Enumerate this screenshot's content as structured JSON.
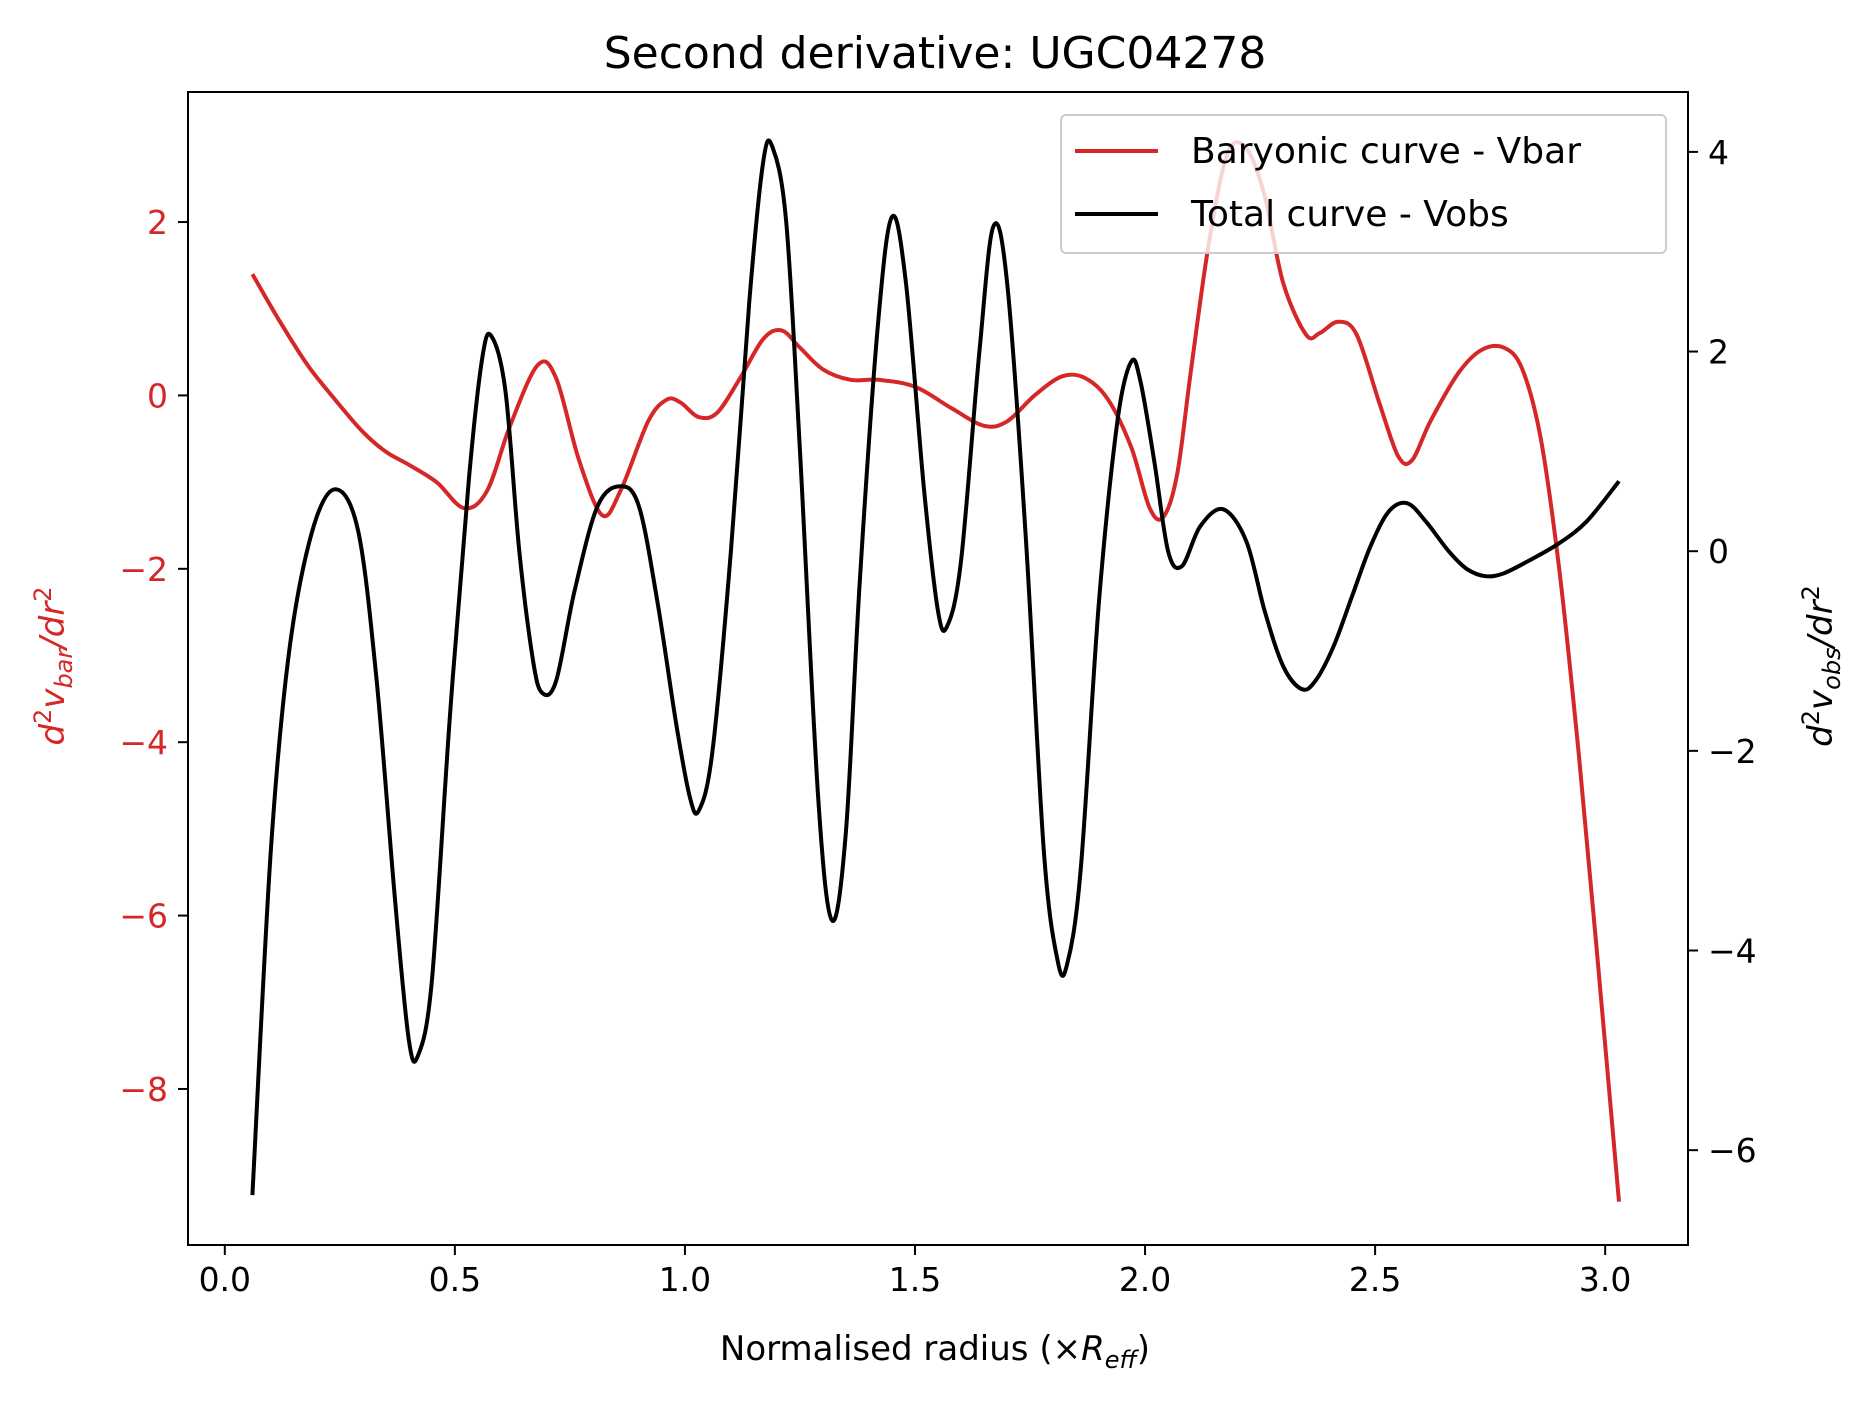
{
  "chart_data": {
    "type": "line",
    "title": "Second derivative: UGC04278",
    "xlabel": {
      "prefix": "Normalised radius (×",
      "sym": "R",
      "sub": "eff",
      "suffix": ")"
    },
    "ylabel_left": {
      "d": "d",
      "sup1": "2",
      "v": "v",
      "sub": "bar",
      "mid": "/dr",
      "sup2": "2"
    },
    "ylabel_right": {
      "d": "d",
      "sup1": "2",
      "v": "v",
      "sub": "obs",
      "mid": "/dr",
      "sup2": "2"
    },
    "xlim": [
      -0.08,
      3.18
    ],
    "ylim_left": [
      -9.8,
      3.5
    ],
    "ylim_right": [
      -6.95,
      4.6
    ],
    "x_ticks": [
      0.0,
      0.5,
      1.0,
      1.5,
      2.0,
      2.5,
      3.0
    ],
    "x_tick_labels": [
      "0.0",
      "0.5",
      "1.0",
      "1.5",
      "2.0",
      "2.5",
      "3.0"
    ],
    "y_left_ticks": [
      2,
      0,
      -2,
      -4,
      -6,
      -8
    ],
    "y_left_tick_labels": [
      "2",
      "0",
      "−2",
      "−4",
      "−6",
      "−8"
    ],
    "y_right_ticks": [
      4,
      2,
      0,
      -2,
      -4,
      -6
    ],
    "y_right_tick_labels": [
      "4",
      "2",
      "0",
      "−2",
      "−4",
      "−6"
    ],
    "legend_position": "top-right",
    "grid": false,
    "colors": {
      "vbar": "#d62728",
      "vobs": "#000000"
    },
    "series": [
      {
        "name": "Baryonic curve - Vbar",
        "axis": "left",
        "color": "#d62728",
        "points": [
          [
            0.06,
            1.4
          ],
          [
            0.12,
            0.85
          ],
          [
            0.18,
            0.35
          ],
          [
            0.24,
            -0.05
          ],
          [
            0.3,
            -0.42
          ],
          [
            0.35,
            -0.65
          ],
          [
            0.4,
            -0.8
          ],
          [
            0.46,
            -1.0
          ],
          [
            0.52,
            -1.3
          ],
          [
            0.57,
            -1.1
          ],
          [
            0.62,
            -0.35
          ],
          [
            0.68,
            0.35
          ],
          [
            0.72,
            0.2
          ],
          [
            0.77,
            -0.75
          ],
          [
            0.82,
            -1.38
          ],
          [
            0.86,
            -1.1
          ],
          [
            0.92,
            -0.3
          ],
          [
            0.96,
            -0.05
          ],
          [
            0.99,
            -0.08
          ],
          [
            1.03,
            -0.25
          ],
          [
            1.07,
            -0.2
          ],
          [
            1.12,
            0.2
          ],
          [
            1.17,
            0.65
          ],
          [
            1.21,
            0.75
          ],
          [
            1.25,
            0.55
          ],
          [
            1.3,
            0.3
          ],
          [
            1.36,
            0.18
          ],
          [
            1.42,
            0.18
          ],
          [
            1.5,
            0.1
          ],
          [
            1.58,
            -0.15
          ],
          [
            1.65,
            -0.35
          ],
          [
            1.7,
            -0.3
          ],
          [
            1.76,
            0.0
          ],
          [
            1.82,
            0.22
          ],
          [
            1.87,
            0.2
          ],
          [
            1.92,
            -0.05
          ],
          [
            1.97,
            -0.6
          ],
          [
            2.01,
            -1.3
          ],
          [
            2.04,
            -1.4
          ],
          [
            2.07,
            -0.9
          ],
          [
            2.1,
            0.3
          ],
          [
            2.14,
            1.8
          ],
          [
            2.18,
            2.8
          ],
          [
            2.22,
            2.85
          ],
          [
            2.26,
            2.3
          ],
          [
            2.3,
            1.3
          ],
          [
            2.35,
            0.7
          ],
          [
            2.38,
            0.72
          ],
          [
            2.42,
            0.85
          ],
          [
            2.46,
            0.7
          ],
          [
            2.51,
            -0.1
          ],
          [
            2.55,
            -0.7
          ],
          [
            2.58,
            -0.75
          ],
          [
            2.62,
            -0.3
          ],
          [
            2.68,
            0.25
          ],
          [
            2.73,
            0.52
          ],
          [
            2.78,
            0.55
          ],
          [
            2.82,
            0.3
          ],
          [
            2.86,
            -0.5
          ],
          [
            2.9,
            -2.0
          ],
          [
            2.94,
            -4.0
          ],
          [
            2.98,
            -6.3
          ],
          [
            3.03,
            -9.3
          ]
        ]
      },
      {
        "name": "Total curve - Vobs",
        "axis": "right",
        "color": "#000000",
        "points": [
          [
            0.06,
            -6.45
          ],
          [
            0.1,
            -3.0
          ],
          [
            0.14,
            -1.0
          ],
          [
            0.19,
            0.2
          ],
          [
            0.24,
            0.62
          ],
          [
            0.29,
            0.2
          ],
          [
            0.33,
            -1.3
          ],
          [
            0.37,
            -3.5
          ],
          [
            0.4,
            -4.9
          ],
          [
            0.42,
            -5.05
          ],
          [
            0.45,
            -4.3
          ],
          [
            0.49,
            -1.6
          ],
          [
            0.53,
            0.7
          ],
          [
            0.56,
            1.95
          ],
          [
            0.58,
            2.15
          ],
          [
            0.61,
            1.6
          ],
          [
            0.64,
            0.0
          ],
          [
            0.67,
            -1.1
          ],
          [
            0.69,
            -1.42
          ],
          [
            0.72,
            -1.3
          ],
          [
            0.76,
            -0.4
          ],
          [
            0.81,
            0.45
          ],
          [
            0.86,
            0.65
          ],
          [
            0.9,
            0.45
          ],
          [
            0.94,
            -0.5
          ],
          [
            0.98,
            -1.7
          ],
          [
            1.01,
            -2.45
          ],
          [
            1.03,
            -2.6
          ],
          [
            1.06,
            -2.0
          ],
          [
            1.1,
            0.0
          ],
          [
            1.14,
            2.5
          ],
          [
            1.17,
            3.9
          ],
          [
            1.19,
            4.05
          ],
          [
            1.22,
            3.3
          ],
          [
            1.25,
            1.0
          ],
          [
            1.29,
            -2.5
          ],
          [
            1.32,
            -3.7
          ],
          [
            1.35,
            -2.8
          ],
          [
            1.38,
            -0.3
          ],
          [
            1.42,
            2.3
          ],
          [
            1.45,
            3.35
          ],
          [
            1.48,
            2.7
          ],
          [
            1.52,
            0.6
          ],
          [
            1.55,
            -0.6
          ],
          [
            1.57,
            -0.75
          ],
          [
            1.6,
            -0.1
          ],
          [
            1.64,
            2.0
          ],
          [
            1.67,
            3.25
          ],
          [
            1.7,
            2.7
          ],
          [
            1.74,
            0.2
          ],
          [
            1.78,
            -3.0
          ],
          [
            1.81,
            -4.1
          ],
          [
            1.83,
            -4.15
          ],
          [
            1.86,
            -3.2
          ],
          [
            1.9,
            -0.5
          ],
          [
            1.94,
            1.3
          ],
          [
            1.97,
            1.9
          ],
          [
            1.99,
            1.7
          ],
          [
            2.02,
            0.9
          ],
          [
            2.05,
            0.0
          ],
          [
            2.08,
            -0.15
          ],
          [
            2.12,
            0.25
          ],
          [
            2.17,
            0.42
          ],
          [
            2.22,
            0.1
          ],
          [
            2.26,
            -0.6
          ],
          [
            2.3,
            -1.15
          ],
          [
            2.34,
            -1.38
          ],
          [
            2.37,
            -1.3
          ],
          [
            2.41,
            -0.95
          ],
          [
            2.45,
            -0.45
          ],
          [
            2.49,
            0.05
          ],
          [
            2.53,
            0.4
          ],
          [
            2.57,
            0.48
          ],
          [
            2.61,
            0.3
          ],
          [
            2.66,
            0.0
          ],
          [
            2.7,
            -0.18
          ],
          [
            2.74,
            -0.25
          ],
          [
            2.78,
            -0.22
          ],
          [
            2.84,
            -0.08
          ],
          [
            2.9,
            0.08
          ],
          [
            2.96,
            0.3
          ],
          [
            3.03,
            0.7
          ]
        ]
      }
    ]
  }
}
